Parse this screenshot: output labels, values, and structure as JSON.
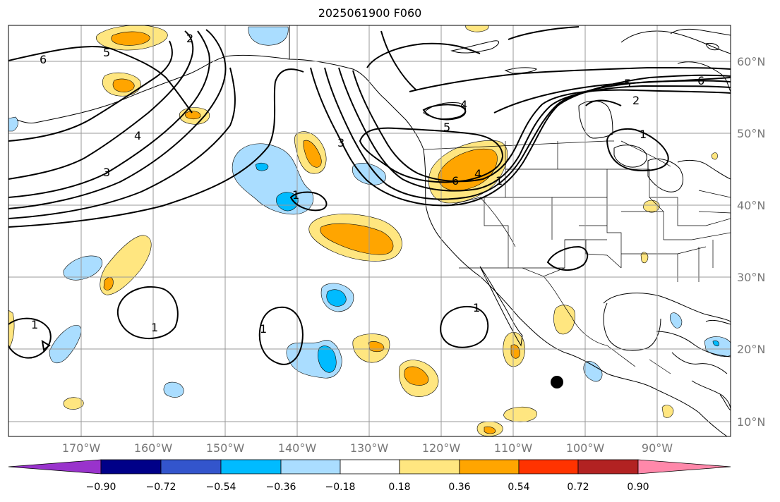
{
  "title": "2025061900 F060",
  "lat_labels": [
    "60°N",
    "50°N",
    "40°N",
    "30°N",
    "20°N",
    "10°N"
  ],
  "lon_labels": [
    "170°W",
    "160°W",
    "150°W",
    "140°W",
    "130°W",
    "120°W",
    "110°W",
    "100°W",
    "90°W"
  ],
  "colorbar": {
    "ticks": [
      "−0.90",
      "−0.72",
      "−0.54",
      "−0.36",
      "−0.18",
      "0.18",
      "0.36",
      "0.54",
      "0.72",
      "0.90"
    ],
    "colors": [
      "#9933cc",
      "#000088",
      "#3355cc",
      "#00bbff",
      "#aaddff",
      "#ffffff",
      "#ffe680",
      "#ffa500",
      "#ff3300",
      "#b22222",
      "#ff88aa"
    ]
  },
  "contour_labels": [
    "6",
    "5",
    "2",
    "4",
    "3",
    "3",
    "5",
    "4",
    "2",
    "6",
    "5",
    "1",
    "6",
    "4",
    "1",
    "1",
    "1",
    "1",
    "1",
    "1"
  ],
  "marker": "storm-position-dot"
}
